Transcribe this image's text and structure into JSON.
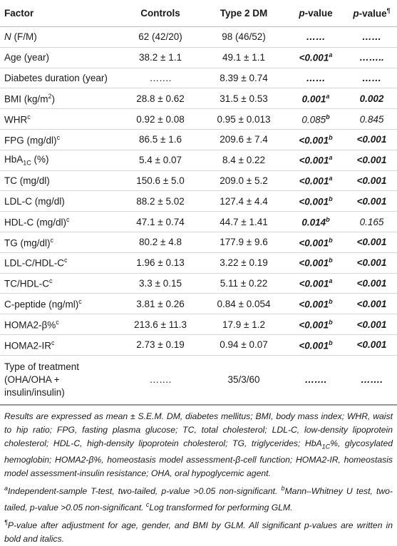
{
  "table": {
    "header": [
      [
        [
          "Factor",
          "b"
        ]
      ],
      [
        [
          "Controls",
          "b"
        ]
      ],
      [
        [
          "Type 2 DM",
          "b"
        ]
      ],
      [
        [
          "p",
          "bi"
        ],
        [
          "-value",
          "b"
        ]
      ],
      [
        [
          "p",
          "bi"
        ],
        [
          "-value",
          "b"
        ],
        [
          "¶",
          "sup"
        ]
      ]
    ],
    "rows": [
      [
        [
          [
            "N",
            "i"
          ],
          [
            " (F/M)",
            ""
          ]
        ],
        [
          [
            "62 (42/20)",
            ""
          ]
        ],
        [
          [
            "98 (46/52)",
            ""
          ]
        ],
        [
          [
            "……",
            "bi"
          ]
        ],
        [
          [
            "……",
            "bi"
          ]
        ]
      ],
      [
        [
          [
            "Age (year)",
            ""
          ]
        ],
        [
          [
            "38.2 ± 1.1",
            ""
          ]
        ],
        [
          [
            "49.1 ± 1.1",
            ""
          ]
        ],
        [
          [
            "<0.001",
            "bi"
          ],
          [
            "a",
            "bi-sup"
          ]
        ],
        [
          [
            "……..",
            "bi"
          ]
        ]
      ],
      [
        [
          [
            "Diabetes duration (year)",
            ""
          ]
        ],
        [
          [
            "…….",
            ""
          ]
        ],
        [
          [
            "8.39 ± 0.74",
            ""
          ]
        ],
        [
          [
            "……",
            "bi"
          ]
        ],
        [
          [
            "……",
            "bi"
          ]
        ]
      ],
      [
        [
          [
            "BMI (kg/m",
            ""
          ],
          [
            "2",
            "sup"
          ],
          [
            ")",
            ""
          ]
        ],
        [
          [
            "28.8 ± 0.62",
            ""
          ]
        ],
        [
          [
            "31.5 ± 0.53",
            ""
          ]
        ],
        [
          [
            "0.001",
            "bi"
          ],
          [
            "a",
            "bi-sup"
          ]
        ],
        [
          [
            "0.002",
            "bi"
          ]
        ]
      ],
      [
        [
          [
            "WHR",
            ""
          ],
          [
            "c",
            "sup"
          ]
        ],
        [
          [
            "0.92 ± 0.08",
            ""
          ]
        ],
        [
          [
            "0.95 ± 0.013",
            ""
          ]
        ],
        [
          [
            "0.085",
            "i"
          ],
          [
            "b",
            "bi-sup"
          ]
        ],
        [
          [
            "0.845",
            "i"
          ]
        ]
      ],
      [
        [
          [
            "FPG (mg/dl)",
            ""
          ],
          [
            "c",
            "sup"
          ]
        ],
        [
          [
            "86.5 ± 1.6",
            ""
          ]
        ],
        [
          [
            "209.6 ± 7.4",
            ""
          ]
        ],
        [
          [
            "<0.001",
            "bi"
          ],
          [
            "b",
            "bi-sup"
          ]
        ],
        [
          [
            "<0.001",
            "bi"
          ]
        ]
      ],
      [
        [
          [
            "HbA",
            ""
          ],
          [
            "1C",
            "sub"
          ],
          [
            " (%)",
            ""
          ]
        ],
        [
          [
            "5.4 ± 0.07",
            ""
          ]
        ],
        [
          [
            "8.4 ± 0.22",
            ""
          ]
        ],
        [
          [
            "<0.001",
            "bi"
          ],
          [
            "a",
            "bi-sup"
          ]
        ],
        [
          [
            "<0.001",
            "bi"
          ]
        ]
      ],
      [
        [
          [
            "TC (mg/dl)",
            ""
          ]
        ],
        [
          [
            "150.6 ± 5.0",
            ""
          ]
        ],
        [
          [
            "209.0 ± 5.2",
            ""
          ]
        ],
        [
          [
            "<0.001",
            "bi"
          ],
          [
            "a",
            "bi-sup"
          ]
        ],
        [
          [
            "<0.001",
            "bi"
          ]
        ]
      ],
      [
        [
          [
            "LDL-C (mg/dl)",
            ""
          ]
        ],
        [
          [
            "88.2 ± 5.02",
            ""
          ]
        ],
        [
          [
            "127.4 ± 4.4",
            ""
          ]
        ],
        [
          [
            "<0.001",
            "bi"
          ],
          [
            "b",
            "bi-sup"
          ]
        ],
        [
          [
            "<0.001",
            "bi"
          ]
        ]
      ],
      [
        [
          [
            "HDL-C (mg/dl)",
            ""
          ],
          [
            "c",
            "sup"
          ]
        ],
        [
          [
            "47.1 ± 0.74",
            ""
          ]
        ],
        [
          [
            "44.7 ± 1.41",
            ""
          ]
        ],
        [
          [
            "0.014",
            "bi"
          ],
          [
            "b",
            "bi-sup"
          ]
        ],
        [
          [
            "0.165",
            "i"
          ]
        ]
      ],
      [
        [
          [
            "TG (mg/dl)",
            ""
          ],
          [
            "c",
            "sup"
          ]
        ],
        [
          [
            "80.2 ± 4.8",
            ""
          ]
        ],
        [
          [
            "177.9 ± 9.6",
            ""
          ]
        ],
        [
          [
            "<0.001",
            "bi"
          ],
          [
            "b",
            "bi-sup"
          ]
        ],
        [
          [
            "<0.001",
            "bi"
          ]
        ]
      ],
      [
        [
          [
            "LDL-C/HDL-C",
            ""
          ],
          [
            "c",
            "sup"
          ]
        ],
        [
          [
            "1.96 ± 0.13",
            ""
          ]
        ],
        [
          [
            "3.22 ± 0.19",
            ""
          ]
        ],
        [
          [
            "<0.001",
            "bi"
          ],
          [
            "b",
            "bi-sup"
          ]
        ],
        [
          [
            "<0.001",
            "bi"
          ]
        ]
      ],
      [
        [
          [
            "TC/HDL-C",
            ""
          ],
          [
            "c",
            "sup"
          ]
        ],
        [
          [
            "3.3 ± 0.15",
            ""
          ]
        ],
        [
          [
            "5.11 ± 0.22",
            ""
          ]
        ],
        [
          [
            "<0.001",
            "bi"
          ],
          [
            "a",
            "bi-sup"
          ]
        ],
        [
          [
            "<0.001",
            "bi"
          ]
        ]
      ],
      [
        [
          [
            "C-peptide (ng/ml)",
            ""
          ],
          [
            "c",
            "sup"
          ]
        ],
        [
          [
            "3.81 ± 0.26",
            ""
          ]
        ],
        [
          [
            "0.84 ± 0.054",
            ""
          ]
        ],
        [
          [
            "<0.001",
            "bi"
          ],
          [
            "b",
            "bi-sup"
          ]
        ],
        [
          [
            "<0.001",
            "bi"
          ]
        ]
      ],
      [
        [
          [
            "HOMA2-β%",
            ""
          ],
          [
            "c",
            "sup"
          ]
        ],
        [
          [
            "213.6 ± 11.3",
            ""
          ]
        ],
        [
          [
            "17.9 ± 1.2",
            ""
          ]
        ],
        [
          [
            "<0.001",
            "bi"
          ],
          [
            "b",
            "bi-sup"
          ]
        ],
        [
          [
            "<0.001",
            "bi"
          ]
        ]
      ],
      [
        [
          [
            "HOMA2-IR",
            ""
          ],
          [
            "c",
            "sup"
          ]
        ],
        [
          [
            "2.73 ± 0.19",
            ""
          ]
        ],
        [
          [
            "0.94 ± 0.07",
            ""
          ]
        ],
        [
          [
            "<0.001",
            "bi"
          ],
          [
            "b",
            "bi-sup"
          ]
        ],
        [
          [
            "<0.001",
            "bi"
          ]
        ]
      ],
      [
        [
          [
            "Type of treatment (OHA/OHA + insulin/insulin)",
            ""
          ]
        ],
        [
          [
            "…….",
            ""
          ]
        ],
        [
          [
            "35/3/60",
            ""
          ]
        ],
        [
          [
            "…….",
            "bi"
          ]
        ],
        [
          [
            "…….",
            "bi"
          ]
        ]
      ]
    ]
  },
  "footnotes": [
    [
      [
        "Results are expressed as mean ± S.E.M. DM, diabetes mellitus; BMI, body mass index; WHR, waist to hip ratio; FPG, fasting plasma glucose; TC, total cholesterol; LDL-C, low-density lipoprotein cholesterol; HDL-C, high-density lipoprotein cholesterol; TG, triglycerides; HbA",
        ""
      ],
      [
        "1C",
        "sub"
      ],
      [
        "%, glycosylated hemoglobin; HOMA2-β%, homeostasis model assessment-β-cell function; HOMA2-IR, homeostasis model assessment-insulin resistance; OHA, oral hypoglycemic agent.",
        ""
      ]
    ],
    [
      [
        "a",
        "sup"
      ],
      [
        "Independent-sample T-test, two-tailed, p-value >0.05 non-significant. ",
        ""
      ],
      [
        "b",
        "sup"
      ],
      [
        "Mann–Whitney U test, two-tailed, p-value >0.05 non-significant. ",
        ""
      ],
      [
        "c",
        "sup"
      ],
      [
        "Log transformed for performing GLM.",
        ""
      ]
    ],
    [
      [
        "¶",
        "sup"
      ],
      [
        "P-value after adjustment for age, gender, and BMI by GLM. All significant p-values are written in bold and italics.",
        ""
      ]
    ]
  ]
}
